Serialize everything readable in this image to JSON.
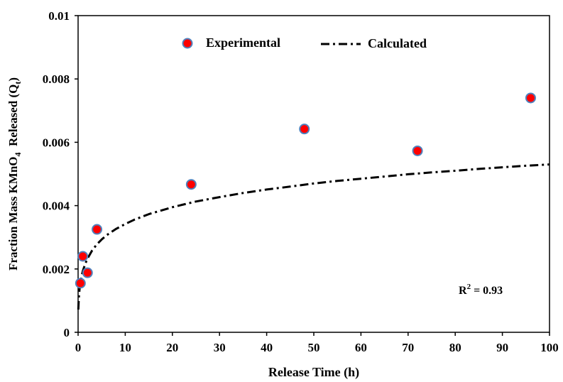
{
  "chart_data": {
    "type": "scatter",
    "xlabel": "Release Time (h)",
    "ylabel": {
      "prefix": "Fraction Mass KMnO",
      "subscript": "4",
      "middle": "  Released (Q",
      "subscript2": "t",
      "suffix": ")"
    },
    "xlim": [
      0,
      100
    ],
    "ylim": [
      0,
      0.01
    ],
    "x_ticks": [
      0,
      10,
      20,
      30,
      40,
      50,
      60,
      70,
      80,
      90,
      100
    ],
    "y_ticks": [
      0,
      0.002,
      0.004,
      0.006,
      0.008,
      0.01
    ],
    "y_tick_labels": [
      "0",
      "0.002",
      "0.004",
      "0.006",
      "0.008",
      "0.01"
    ],
    "grid": false,
    "legend_position": "top",
    "series": [
      {
        "name": "Experimental",
        "kind": "scatter",
        "marker_fill": "#ff0000",
        "marker_edge": "#4f81bd",
        "x": [
          0.5,
          1,
          2,
          4,
          24,
          48,
          72,
          96
        ],
        "y": [
          0.00155,
          0.0024,
          0.00188,
          0.00325,
          0.00467,
          0.00642,
          0.00573,
          0.0074
        ]
      },
      {
        "name": "Calculated",
        "kind": "line",
        "line_color": "#000000",
        "line_style": "dash-dot",
        "x": [
          0.05,
          0.1,
          0.2,
          0.3,
          0.5,
          0.75,
          1,
          1.5,
          2,
          3,
          4,
          5,
          6,
          8,
          10,
          12,
          15,
          20,
          25,
          30,
          35,
          40,
          45,
          50,
          55,
          60,
          65,
          70,
          75,
          80,
          85,
          90,
          95,
          100
        ],
        "y": [
          0.00072,
          0.00092,
          0.00118,
          0.00135,
          0.00158,
          0.00178,
          0.00193,
          0.00216,
          0.00233,
          0.00259,
          0.00278,
          0.00293,
          0.00306,
          0.00326,
          0.00342,
          0.00356,
          0.00373,
          0.00395,
          0.00413,
          0.00427,
          0.0044,
          0.00451,
          0.0046,
          0.0047,
          0.00478,
          0.00485,
          0.00492,
          0.00499,
          0.00505,
          0.0051,
          0.00516,
          0.00521,
          0.00526,
          0.0053
        ]
      }
    ],
    "annotation": {
      "prefix": "R",
      "superscript": "2",
      "suffix": " = 0.93"
    }
  }
}
